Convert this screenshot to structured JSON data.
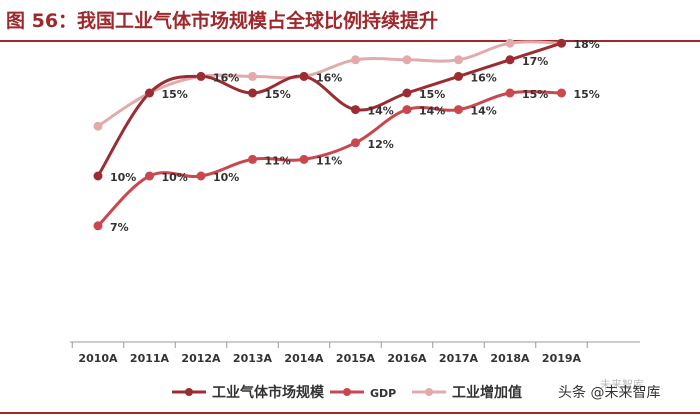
{
  "figure": {
    "title": "图 56：我国工业气体市场规模占全球比例持续提升",
    "watermark": "头条 @未来智库",
    "watermark_sub": "未来智库"
  },
  "chart_data": {
    "type": "line",
    "title": "",
    "xlabel": "",
    "ylabel": "",
    "x": [
      "2010A",
      "2011A",
      "2012A",
      "2013A",
      "2014A",
      "2015A",
      "2016A",
      "2017A",
      "2018A",
      "2019A"
    ],
    "ylim": [
      0,
      20
    ],
    "grid": false,
    "legend": "bottom",
    "series": [
      {
        "name": "工业气体市场规模",
        "color": "#9b2d32",
        "values": [
          10,
          15,
          16,
          15,
          16,
          14,
          15,
          16,
          17,
          18
        ],
        "labels": [
          "10%",
          "15%",
          "16%",
          "15%",
          "16%",
          "14%",
          "15%",
          "16%",
          "17%",
          "18%"
        ]
      },
      {
        "name": "GDP",
        "color": "#c9474d",
        "values": [
          7,
          10,
          10,
          11,
          11,
          12,
          14,
          14,
          15,
          15
        ],
        "labels": [
          "7%",
          "10%",
          "10%",
          "11%",
          "11%",
          "12%",
          "14%",
          "14%",
          "15%",
          "15%"
        ]
      },
      {
        "name": "工业增加值",
        "color": "#e3aaab",
        "values": [
          13,
          15,
          16,
          16,
          16,
          17,
          17,
          17,
          18,
          18
        ],
        "labels": []
      }
    ]
  }
}
